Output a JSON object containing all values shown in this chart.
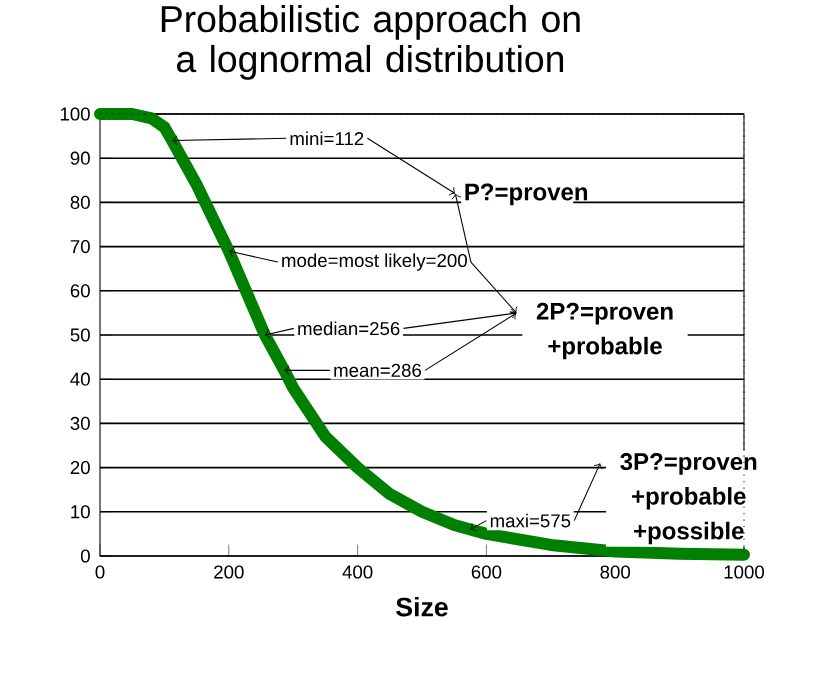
{
  "chart_data": {
    "type": "line",
    "title": "Probabilistic approach on a lognormal distribution",
    "xlabel": "Size",
    "x": [
      0,
      50,
      80,
      100,
      112,
      150,
      200,
      256,
      286,
      300,
      350,
      400,
      450,
      500,
      550,
      575,
      600,
      700,
      800,
      900,
      1000
    ],
    "series": [
      {
        "color": "#008000",
        "values": [
          100,
          100,
          99,
          97,
          94,
          84,
          69,
          50,
          42,
          38,
          27,
          20,
          14,
          10,
          7,
          6,
          5,
          2.5,
          1,
          0.5,
          0.3
        ]
      }
    ],
    "xlim": [
      0,
      1000
    ],
    "xticks": [
      0,
      200,
      400,
      600,
      800,
      1000
    ],
    "ylim": [
      0,
      100
    ],
    "yticks": [
      0,
      10,
      20,
      30,
      40,
      50,
      60,
      70,
      80,
      90,
      100
    ],
    "grid": "y",
    "marker": "none",
    "line_style": "solid",
    "annotations": [
      {
        "text": "mini=112",
        "x": 112,
        "y": 94
      },
      {
        "text": "mode=most likely=200",
        "x": 200,
        "y": 69
      },
      {
        "text": "median=256",
        "x": 256,
        "y": 50
      },
      {
        "text": "mean=286",
        "x": 286,
        "y": 42
      },
      {
        "text": "maxi=575",
        "x": 575,
        "y": 6
      },
      "P?=proven",
      "2P?=proven +probable",
      "3P?=proven +probable +possible"
    ]
  }
}
